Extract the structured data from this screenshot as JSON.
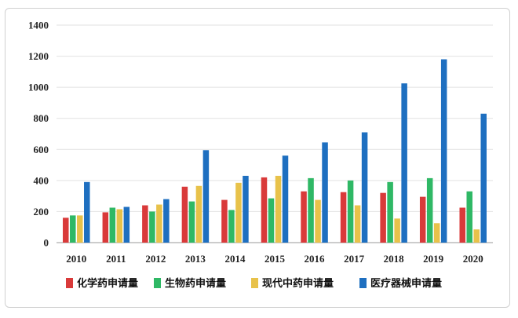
{
  "chart_data": {
    "type": "bar",
    "title": "",
    "xlabel": "",
    "ylabel": "",
    "categories": [
      "2010",
      "2011",
      "2012",
      "2013",
      "2014",
      "2015",
      "2016",
      "2017",
      "2018",
      "2019",
      "2020"
    ],
    "ylim": [
      0,
      1400
    ],
    "yticks": [
      0,
      200,
      400,
      600,
      800,
      1000,
      1200,
      1400
    ],
    "grid": true,
    "legend_position": "bottom",
    "series": [
      {
        "name": "化学药申请量",
        "color": "#d93a3a",
        "values": [
          160,
          195,
          240,
          360,
          275,
          420,
          330,
          325,
          320,
          295,
          225
        ]
      },
      {
        "name": "生物药申请量",
        "color": "#2fb865",
        "values": [
          175,
          225,
          200,
          265,
          210,
          285,
          415,
          400,
          390,
          415,
          330
        ]
      },
      {
        "name": "现代中药申请量",
        "color": "#e8c24a",
        "values": [
          175,
          215,
          245,
          365,
          385,
          430,
          275,
          240,
          155,
          125,
          85
        ]
      },
      {
        "name": "医疗器械申请量",
        "color": "#1e6fc0",
        "values": [
          390,
          230,
          280,
          595,
          430,
          560,
          645,
          710,
          1025,
          1180,
          830
        ]
      }
    ]
  }
}
